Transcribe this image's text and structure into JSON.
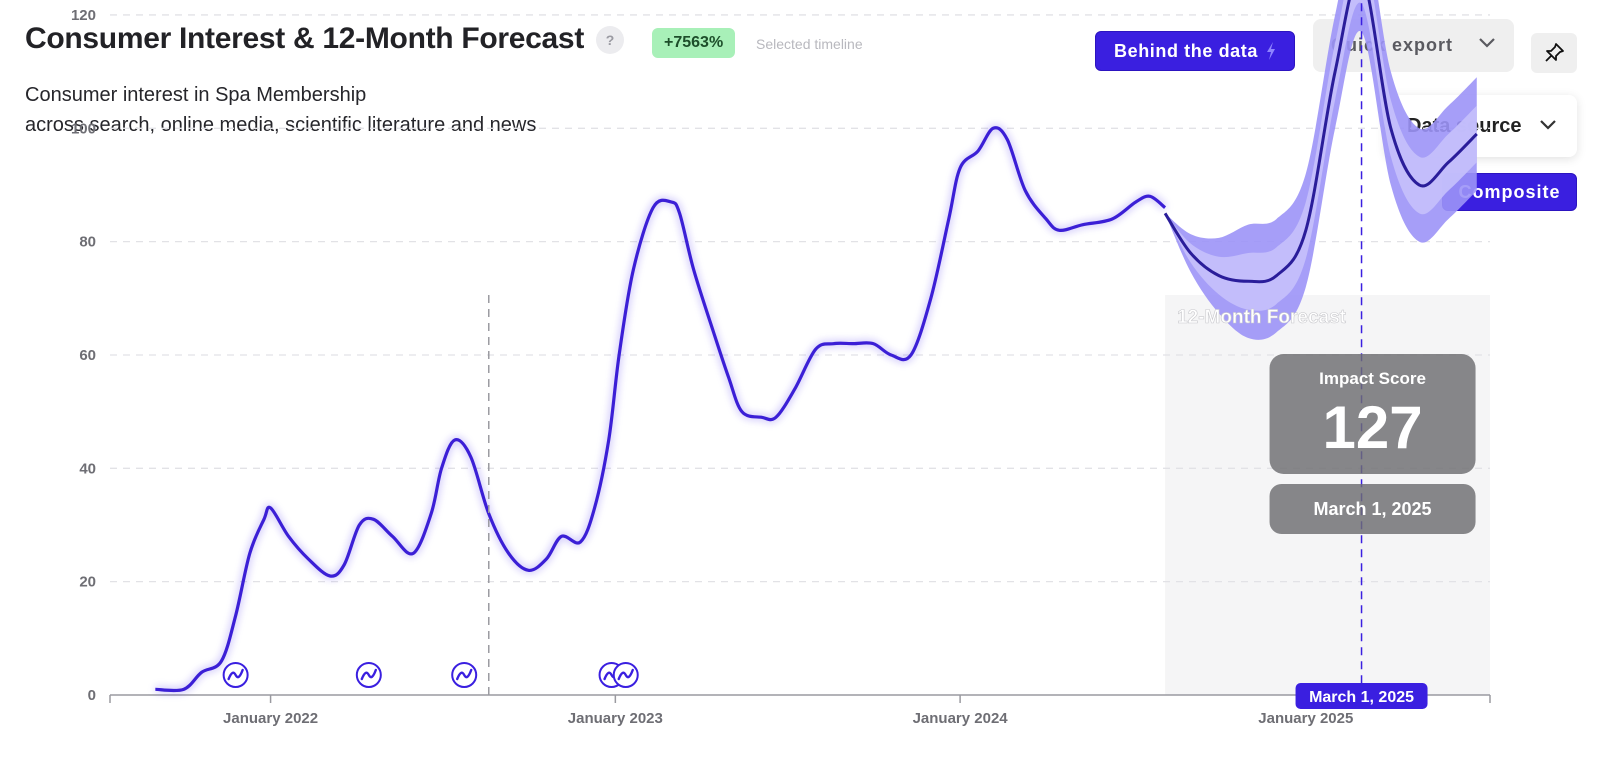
{
  "header": {
    "title": "Consumer Interest & 12-Month Forecast",
    "help_label": "?",
    "change_badge": "+7563%",
    "change_caption": "Selected timeline",
    "subtitle_line1": "Consumer interest in Spa Membership",
    "subtitle_line2": "across search, online media, scientific literature and news"
  },
  "toolbar": {
    "behind_data_label": "Behind the data",
    "quick_export_label": "Quick export",
    "data_source_label": "Data source",
    "composite_label": "Composite"
  },
  "colors": {
    "accent": "#3a1fe0",
    "line": "#3b1fd6",
    "badge_green": "#a8f0b8",
    "forecast_band_outer": "#9c94f7",
    "forecast_band_inner": "#c4bffb",
    "forecast_region": "#f5f5f6"
  },
  "icons": {
    "help": "question-icon",
    "behind_data": "bolt-icon",
    "export": "chevron-down-icon",
    "pin": "pin-icon",
    "events": "trend-event-icon"
  },
  "chart_data": {
    "type": "line",
    "title": "Consumer Interest & 12-Month Forecast",
    "xlabel": "",
    "ylabel": "",
    "ylim": [
      0,
      140
    ],
    "yticks": [
      0,
      20,
      40,
      60,
      80,
      100,
      120
    ],
    "xtick_labels": [
      "January 2022",
      "January 2023",
      "January 2024",
      "January 2025"
    ],
    "xtick_dates": [
      "2022-01-01",
      "2023-01-01",
      "2024-01-01",
      "2025-01-01"
    ],
    "x_range": [
      "2021-07-15",
      "2025-07-15"
    ],
    "grid": true,
    "historical": [
      [
        "2021-09-01",
        1
      ],
      [
        "2021-10-01",
        1
      ],
      [
        "2021-10-20",
        4
      ],
      [
        "2021-11-10",
        6
      ],
      [
        "2021-11-25",
        14
      ],
      [
        "2021-12-10",
        25
      ],
      [
        "2021-12-25",
        31
      ],
      [
        "2022-01-01",
        33
      ],
      [
        "2022-01-20",
        28
      ],
      [
        "2022-02-10",
        24
      ],
      [
        "2022-03-05",
        21
      ],
      [
        "2022-03-20",
        23
      ],
      [
        "2022-04-05",
        30
      ],
      [
        "2022-04-20",
        31
      ],
      [
        "2022-05-10",
        28
      ],
      [
        "2022-06-01",
        25
      ],
      [
        "2022-06-20",
        32
      ],
      [
        "2022-07-01",
        40
      ],
      [
        "2022-07-15",
        45
      ],
      [
        "2022-08-01",
        42
      ],
      [
        "2022-08-20",
        32
      ],
      [
        "2022-09-10",
        25
      ],
      [
        "2022-10-01",
        22
      ],
      [
        "2022-10-20",
        24
      ],
      [
        "2022-11-05",
        28
      ],
      [
        "2022-11-25",
        27
      ],
      [
        "2022-12-10",
        33
      ],
      [
        "2022-12-25",
        45
      ],
      [
        "2023-01-05",
        60
      ],
      [
        "2023-01-20",
        75
      ],
      [
        "2023-02-10",
        86
      ],
      [
        "2023-03-01",
        87
      ],
      [
        "2023-03-10",
        85
      ],
      [
        "2023-03-25",
        75
      ],
      [
        "2023-04-15",
        64
      ],
      [
        "2023-05-01",
        56
      ],
      [
        "2023-05-15",
        50
      ],
      [
        "2023-06-05",
        49
      ],
      [
        "2023-06-20",
        49
      ],
      [
        "2023-07-10",
        54
      ],
      [
        "2023-08-01",
        61
      ],
      [
        "2023-08-20",
        62
      ],
      [
        "2023-09-10",
        62
      ],
      [
        "2023-10-01",
        62
      ],
      [
        "2023-10-20",
        60
      ],
      [
        "2023-11-10",
        60
      ],
      [
        "2023-12-01",
        70
      ],
      [
        "2023-12-20",
        84
      ],
      [
        "2024-01-01",
        93
      ],
      [
        "2024-01-20",
        96
      ],
      [
        "2024-02-05",
        100
      ],
      [
        "2024-02-20",
        98
      ],
      [
        "2024-03-10",
        89
      ],
      [
        "2024-04-01",
        84
      ],
      [
        "2024-04-15",
        82
      ],
      [
        "2024-05-10",
        83
      ],
      [
        "2024-06-10",
        84
      ],
      [
        "2024-07-05",
        87
      ],
      [
        "2024-07-20",
        88
      ],
      [
        "2024-08-05",
        86
      ]
    ],
    "forecast_region_start": "2024-08-05",
    "forecast": [
      [
        "2024-08-05",
        85
      ],
      [
        "2024-09-01",
        78
      ],
      [
        "2024-10-01",
        74
      ],
      [
        "2024-11-01",
        73
      ],
      [
        "2024-12-01",
        74
      ],
      [
        "2025-01-01",
        82
      ],
      [
        "2025-02-01",
        110
      ],
      [
        "2025-03-01",
        127
      ],
      [
        "2025-04-01",
        100
      ],
      [
        "2025-05-01",
        90
      ],
      [
        "2025-06-01",
        94
      ],
      [
        "2025-07-01",
        99
      ]
    ],
    "forecast_band_inner_width": 5,
    "forecast_band_outer_width": 10,
    "forecast_label": "12-Month Forecast",
    "highlight": {
      "date": "2025-03-01",
      "value": 127,
      "value_label": "127",
      "date_label": "March 1, 2025",
      "tooltip_title": "Impact Score",
      "tooltip_value": "127",
      "tooltip_date": "March 1, 2025"
    },
    "event_marker_dates": [
      "2021-11-25",
      "2022-04-15",
      "2022-07-25",
      "2022-12-28",
      "2023-01-12"
    ],
    "event_marker_divider_date": "2022-08-20"
  }
}
